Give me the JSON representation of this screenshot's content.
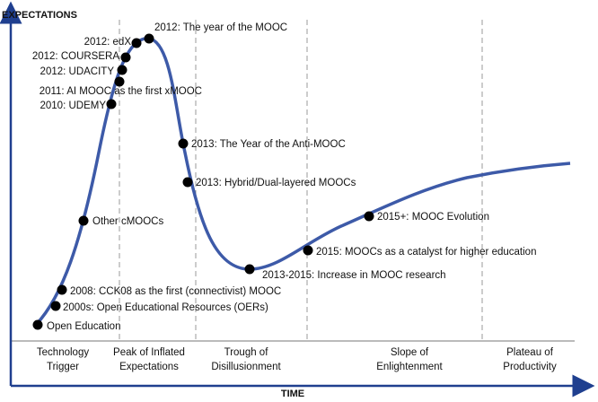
{
  "axes": {
    "y_label": "EXPECTATIONS",
    "x_label": "TIME"
  },
  "milestones": [
    {
      "label": "Open Education"
    },
    {
      "label": "2000s: Open Educational Resources (OERs)"
    },
    {
      "label": "2008: CCK08 as the first (connectivist) MOOC"
    },
    {
      "label": "Other cMOOCs"
    },
    {
      "label": "2010: UDEMY"
    },
    {
      "label": "2011: AI MOOC as the first xMOOC"
    },
    {
      "label": "2012: UDACITY"
    },
    {
      "label": "2012: COURSERA"
    },
    {
      "label": "2012: edX"
    },
    {
      "label": "2012: The year of the MOOC"
    },
    {
      "label": "2013: The Year of the Anti-MOOC"
    },
    {
      "label": "2013: Hybrid/Dual-layered MOOCs"
    },
    {
      "label": "2013-2015: Increase in MOOC research"
    },
    {
      "label": "2015: MOOCs as a catalyst for higher education"
    },
    {
      "label": "2015+: MOOC Evolution"
    }
  ],
  "phases": [
    {
      "lines": [
        "Technology",
        "Trigger"
      ]
    },
    {
      "lines": [
        "Peak of Inflated",
        "Expectations"
      ]
    },
    {
      "lines": [
        "Trough of",
        "Disillusionment"
      ]
    },
    {
      "lines": [
        "Slope of",
        "Enlightenment"
      ]
    },
    {
      "lines": [
        "Plateau of",
        "Productivity"
      ]
    }
  ]
}
